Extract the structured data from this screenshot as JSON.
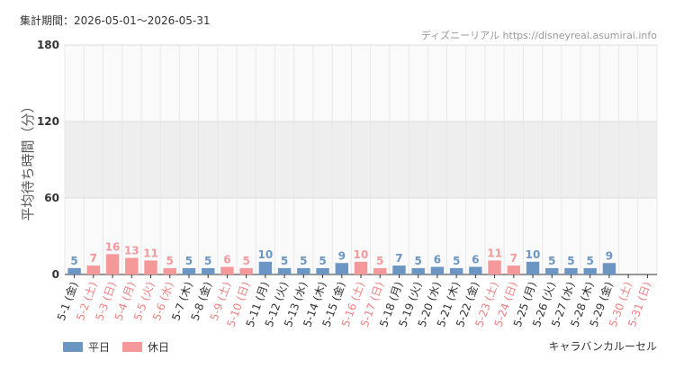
{
  "chart_data": {
    "type": "bar",
    "title": "集計期間：2026-05-01～2026-05-31",
    "source": "ディズニーリアル https://disneyreal.asumirai.info",
    "ylabel": "平均待ち時間（分）",
    "caption": "キャラバンカルーセル",
    "categories": [
      "5-1 (金)",
      "5-2 (土)",
      "5-3 (日)",
      "5-4 (月)",
      "5-5 (火)",
      "5-6 (水)",
      "5-7 (木)",
      "5-8 (金)",
      "5-9 (土)",
      "5-10 (日)",
      "5-11 (月)",
      "5-12 (火)",
      "5-13 (水)",
      "5-14 (木)",
      "5-15 (金)",
      "5-16 (土)",
      "5-17 (日)",
      "5-18 (月)",
      "5-19 (火)",
      "5-20 (水)",
      "5-21 (木)",
      "5-22 (金)",
      "5-23 (土)",
      "5-24 (日)",
      "5-25 (月)",
      "5-26 (火)",
      "5-27 (水)",
      "5-28 (木)",
      "5-29 (金)",
      "5-30 (土)",
      "5-31 (日)"
    ],
    "category_colors": [
      "#333",
      "#f08080",
      "#f08080",
      "#f08080",
      "#f08080",
      "#f08080",
      "#333",
      "#333",
      "#f08080",
      "#f08080",
      "#333",
      "#333",
      "#333",
      "#333",
      "#333",
      "#f08080",
      "#f08080",
      "#333",
      "#333",
      "#333",
      "#333",
      "#333",
      "#f08080",
      "#f08080",
      "#333",
      "#333",
      "#333",
      "#333",
      "#333",
      "#f08080",
      "#f08080"
    ],
    "series": [
      {
        "name": "平日",
        "color": "#6b96c3",
        "values": [
          5,
          null,
          null,
          null,
          null,
          null,
          5,
          5,
          null,
          null,
          10,
          5,
          5,
          5,
          9,
          null,
          null,
          7,
          5,
          6,
          5,
          6,
          null,
          null,
          10,
          5,
          5,
          5,
          9,
          null,
          null
        ]
      },
      {
        "name": "休日",
        "color": "#f4989a",
        "values": [
          null,
          7,
          16,
          13,
          11,
          5,
          null,
          null,
          6,
          5,
          null,
          null,
          null,
          null,
          null,
          10,
          5,
          null,
          null,
          null,
          null,
          null,
          11,
          7,
          null,
          null,
          null,
          null,
          null,
          null,
          null
        ]
      }
    ],
    "ylim": [
      0,
      180
    ],
    "yticks": [
      0,
      60,
      120,
      180
    ],
    "shade": [
      60,
      120
    ],
    "grid": true
  }
}
